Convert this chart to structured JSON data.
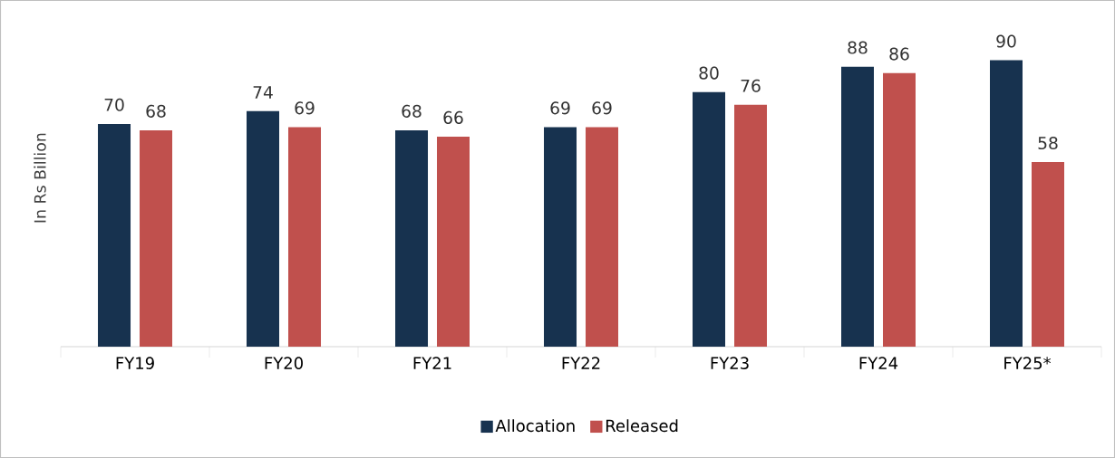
{
  "chart_data": {
    "type": "bar",
    "ylabel": "In Rs Billion",
    "categories": [
      "FY19",
      "FY20",
      "FY21",
      "FY22",
      "FY23",
      "FY24",
      "FY25*"
    ],
    "series": [
      {
        "name": "Allocation",
        "color": "#17324f",
        "values": [
          70,
          74,
          68,
          69,
          80,
          88,
          90
        ]
      },
      {
        "name": "Released",
        "color": "#c0504d",
        "values": [
          68,
          69,
          66,
          69,
          76,
          86,
          58
        ]
      }
    ],
    "data_labels": true,
    "grid": false,
    "legend": "bottom"
  }
}
